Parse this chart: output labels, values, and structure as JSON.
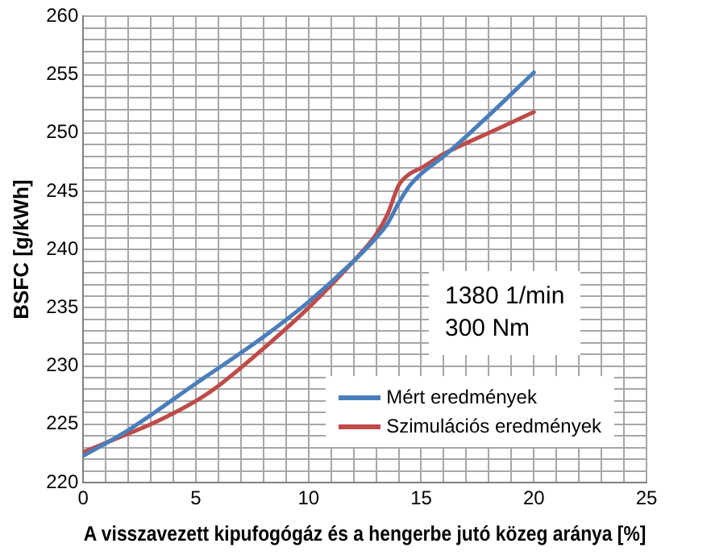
{
  "chart_data": {
    "type": "line",
    "xlabel": "A visszavezett kipufogógáz és a hengerbe jutó közeg aránya [%]",
    "ylabel": "BSFC [g/kWh]",
    "xlim": [
      0,
      25
    ],
    "ylim": [
      220,
      260
    ],
    "xticks": [
      0,
      {
        "value": 1,
        "label": null
      },
      {
        "value": 2,
        "label": null
      },
      {
        "value": 3,
        "label": null
      },
      {
        "value": 4,
        "label": null
      },
      5,
      {
        "value": 6,
        "label": null
      },
      {
        "value": 7,
        "label": null
      },
      {
        "value": 8,
        "label": null
      },
      {
        "value": 9,
        "label": null
      },
      10,
      {
        "value": 11,
        "label": null
      },
      {
        "value": 12,
        "label": null
      },
      {
        "value": 13,
        "label": null
      },
      {
        "value": 14,
        "label": null
      },
      15,
      {
        "value": 16,
        "label": null
      },
      {
        "value": 17,
        "label": null
      },
      {
        "value": 18,
        "label": null
      },
      {
        "value": 19,
        "label": null
      },
      20,
      {
        "value": 21,
        "label": null
      },
      {
        "value": 22,
        "label": null
      },
      {
        "value": 23,
        "label": null
      },
      {
        "value": 24,
        "label": null
      },
      25
    ],
    "yticks": [
      220,
      {
        "value": 221,
        "label": null
      },
      {
        "value": 222,
        "label": null
      },
      {
        "value": 223,
        "label": null
      },
      {
        "value": 224,
        "label": null
      },
      225,
      {
        "value": 226,
        "label": null
      },
      {
        "value": 227,
        "label": null
      },
      {
        "value": 228,
        "label": null
      },
      {
        "value": 229,
        "label": null
      },
      230,
      {
        "value": 231,
        "label": null
      },
      {
        "value": 232,
        "label": null
      },
      {
        "value": 233,
        "label": null
      },
      {
        "value": 234,
        "label": null
      },
      235,
      {
        "value": 236,
        "label": null
      },
      {
        "value": 237,
        "label": null
      },
      {
        "value": 238,
        "label": null
      },
      {
        "value": 239,
        "label": null
      },
      240,
      {
        "value": 241,
        "label": null
      },
      {
        "value": 242,
        "label": null
      },
      {
        "value": 243,
        "label": null
      },
      {
        "value": 244,
        "label": null
      },
      245,
      {
        "value": 246,
        "label": null
      },
      {
        "value": 247,
        "label": null
      },
      {
        "value": 248,
        "label": null
      },
      {
        "value": 249,
        "label": null
      },
      250,
      {
        "value": 251,
        "label": null
      },
      {
        "value": 252,
        "label": null
      },
      {
        "value": 253,
        "label": null
      },
      {
        "value": 254,
        "label": null
      },
      255,
      {
        "value": 256,
        "label": null
      },
      {
        "value": 257,
        "label": null
      },
      {
        "value": 258,
        "label": null
      },
      {
        "value": 259,
        "label": null
      },
      260
    ],
    "grid": true,
    "legend": "bottom right",
    "marker": "none",
    "line_style": "solid",
    "annotations": [
      "1380 1/min",
      "300 Nm"
    ],
    "series": [
      {
        "name": "Mért eredmények",
        "color": "#4a7ebb",
        "x": [
          0,
          2,
          5,
          8,
          10,
          12,
          13,
          13.5,
          14,
          14.5,
          15,
          16,
          18,
          20
        ],
        "values": [
          222.3,
          224.5,
          228.5,
          232.5,
          235.5,
          239,
          241,
          242.2,
          244,
          245.5,
          246.5,
          248,
          251.5,
          255.2
        ]
      },
      {
        "name": "Szimulációs eredmények",
        "color": "#be4b48",
        "x": [
          0,
          2,
          3,
          5,
          6,
          8,
          10,
          12,
          13,
          13.5,
          14,
          14.5,
          15,
          16,
          18,
          20
        ],
        "values": [
          222.6,
          224.2,
          225,
          227,
          228.3,
          231.5,
          235,
          239,
          241.3,
          243,
          245.5,
          246.5,
          247,
          248.2,
          250,
          251.8
        ]
      }
    ]
  }
}
